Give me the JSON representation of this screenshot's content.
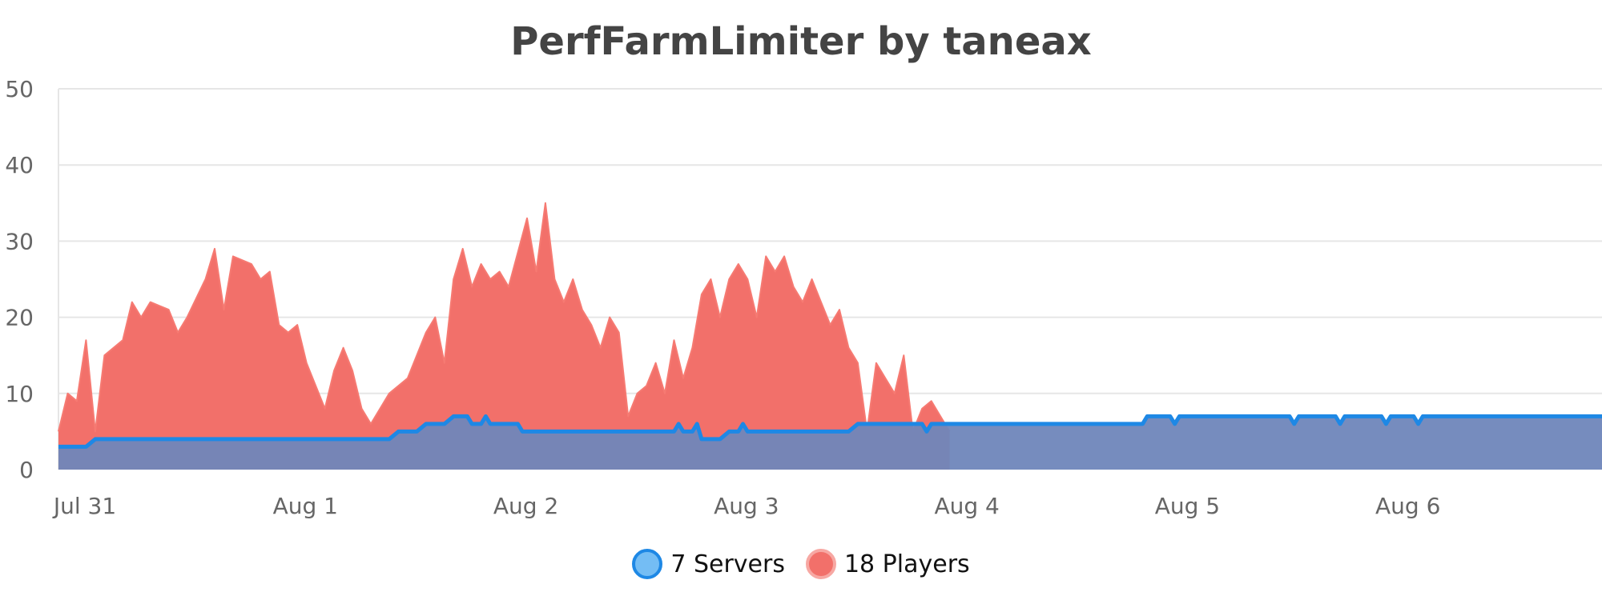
{
  "chart_data": {
    "type": "area",
    "title": "PerfFarmLimiter by taneax",
    "x_axis": {
      "type": "date",
      "range": [
        "2024-07-31",
        "2024-08-07"
      ],
      "tick_labels": [
        "Jul 31",
        "Aug 1",
        "Aug 2",
        "Aug 3",
        "Aug 4",
        "Aug 5",
        "Aug 6"
      ],
      "tick_values": [
        "2024-07-31",
        "2024-08-01",
        "2024-08-02",
        "2024-08-03",
        "2024-08-04",
        "2024-08-05",
        "2024-08-06"
      ]
    },
    "y_axis": {
      "range": [
        0,
        50
      ],
      "tick_labels": [
        "0",
        "10",
        "20",
        "30",
        "40",
        "50"
      ],
      "grid": true
    },
    "legend": {
      "position": "bottom"
    },
    "series": [
      {
        "name": "7 Servers",
        "color": "#1e88e5",
        "fill": "#6f86ba",
        "points": [
          [
            "2024-07-31T00:00",
            3
          ],
          [
            "2024-07-31T03:00",
            3
          ],
          [
            "2024-07-31T04:00",
            4
          ],
          [
            "2024-08-01T12:00",
            4
          ],
          [
            "2024-08-01T13:00",
            5
          ],
          [
            "2024-08-01T15:00",
            5
          ],
          [
            "2024-08-01T16:00",
            6
          ],
          [
            "2024-08-01T18:00",
            6
          ],
          [
            "2024-08-01T19:00",
            7
          ],
          [
            "2024-08-01T20:30",
            7
          ],
          [
            "2024-08-01T21:00",
            6
          ],
          [
            "2024-08-01T22:00",
            6
          ],
          [
            "2024-08-01T22:30",
            7
          ],
          [
            "2024-08-01T23:00",
            6
          ],
          [
            "2024-08-02T02:00",
            6
          ],
          [
            "2024-08-02T02:30",
            5
          ],
          [
            "2024-08-02T19:00",
            5
          ],
          [
            "2024-08-02T19:30",
            6
          ],
          [
            "2024-08-02T20:00",
            5
          ],
          [
            "2024-08-02T21:00",
            5
          ],
          [
            "2024-08-02T21:30",
            6
          ],
          [
            "2024-08-02T22:00",
            4
          ],
          [
            "2024-08-03T00:00",
            4
          ],
          [
            "2024-08-03T01:00",
            5
          ],
          [
            "2024-08-03T02:00",
            5
          ],
          [
            "2024-08-03T02:30",
            6
          ],
          [
            "2024-08-03T03:00",
            5
          ],
          [
            "2024-08-03T14:00",
            5
          ],
          [
            "2024-08-03T15:00",
            6
          ],
          [
            "2024-08-03T22:00",
            6
          ],
          [
            "2024-08-03T22:30",
            5
          ],
          [
            "2024-08-03T23:00",
            6
          ],
          [
            "2024-08-04T22:00",
            6
          ],
          [
            "2024-08-04T22:30",
            7
          ],
          [
            "2024-08-05T01:00",
            7
          ],
          [
            "2024-08-05T01:30",
            6
          ],
          [
            "2024-08-05T02:00",
            7
          ],
          [
            "2024-08-05T14:00",
            7
          ],
          [
            "2024-08-05T14:30",
            6
          ],
          [
            "2024-08-05T15:00",
            7
          ],
          [
            "2024-08-05T19:00",
            7
          ],
          [
            "2024-08-05T19:30",
            6
          ],
          [
            "2024-08-05T20:00",
            7
          ],
          [
            "2024-08-06T00:00",
            7
          ],
          [
            "2024-08-06T00:30",
            6
          ],
          [
            "2024-08-06T01:00",
            7
          ],
          [
            "2024-08-06T03:30",
            7
          ],
          [
            "2024-08-06T04:00",
            6
          ],
          [
            "2024-08-06T04:30",
            7
          ],
          [
            "2024-08-07T00:00",
            7
          ]
        ]
      },
      {
        "name": "18 Players",
        "color": "#f67a72",
        "fill": "#f2706a",
        "points": [
          [
            "2024-07-31T00:00",
            5
          ],
          [
            "2024-07-31T01:00",
            10
          ],
          [
            "2024-07-31T02:00",
            9
          ],
          [
            "2024-07-31T03:00",
            17
          ],
          [
            "2024-07-31T04:00",
            5
          ],
          [
            "2024-07-31T05:00",
            15
          ],
          [
            "2024-07-31T07:00",
            17
          ],
          [
            "2024-07-31T08:00",
            22
          ],
          [
            "2024-07-31T09:00",
            20
          ],
          [
            "2024-07-31T10:00",
            22
          ],
          [
            "2024-07-31T12:00",
            21
          ],
          [
            "2024-07-31T13:00",
            18
          ],
          [
            "2024-07-31T14:00",
            20
          ],
          [
            "2024-07-31T16:00",
            25
          ],
          [
            "2024-07-31T17:00",
            29
          ],
          [
            "2024-07-31T18:00",
            21
          ],
          [
            "2024-07-31T19:00",
            28
          ],
          [
            "2024-07-31T21:00",
            27
          ],
          [
            "2024-07-31T22:00",
            25
          ],
          [
            "2024-07-31T23:00",
            26
          ],
          [
            "2024-08-01T00:00",
            19
          ],
          [
            "2024-08-01T01:00",
            18
          ],
          [
            "2024-08-01T02:00",
            19
          ],
          [
            "2024-08-01T03:00",
            14
          ],
          [
            "2024-08-01T05:00",
            8
          ],
          [
            "2024-08-01T06:00",
            13
          ],
          [
            "2024-08-01T07:00",
            16
          ],
          [
            "2024-08-01T08:00",
            13
          ],
          [
            "2024-08-01T09:00",
            8
          ],
          [
            "2024-08-01T10:00",
            6
          ],
          [
            "2024-08-01T11:00",
            8
          ],
          [
            "2024-08-01T12:00",
            10
          ],
          [
            "2024-08-01T14:00",
            12
          ],
          [
            "2024-08-01T16:00",
            18
          ],
          [
            "2024-08-01T17:00",
            20
          ],
          [
            "2024-08-01T18:00",
            14
          ],
          [
            "2024-08-01T19:00",
            25
          ],
          [
            "2024-08-01T20:00",
            29
          ],
          [
            "2024-08-01T21:00",
            24
          ],
          [
            "2024-08-01T22:00",
            27
          ],
          [
            "2024-08-01T23:00",
            25
          ],
          [
            "2024-08-02T00:00",
            26
          ],
          [
            "2024-08-02T01:00",
            24
          ],
          [
            "2024-08-02T03:00",
            33
          ],
          [
            "2024-08-02T04:00",
            26
          ],
          [
            "2024-08-02T05:00",
            35
          ],
          [
            "2024-08-02T06:00",
            25
          ],
          [
            "2024-08-02T07:00",
            22
          ],
          [
            "2024-08-02T08:00",
            25
          ],
          [
            "2024-08-02T09:00",
            21
          ],
          [
            "2024-08-02T10:00",
            19
          ],
          [
            "2024-08-02T11:00",
            16
          ],
          [
            "2024-08-02T12:00",
            20
          ],
          [
            "2024-08-02T13:00",
            18
          ],
          [
            "2024-08-02T14:00",
            7
          ],
          [
            "2024-08-02T15:00",
            10
          ],
          [
            "2024-08-02T16:00",
            11
          ],
          [
            "2024-08-02T17:00",
            14
          ],
          [
            "2024-08-02T18:00",
            10
          ],
          [
            "2024-08-02T19:00",
            17
          ],
          [
            "2024-08-02T20:00",
            12
          ],
          [
            "2024-08-02T21:00",
            16
          ],
          [
            "2024-08-02T22:00",
            23
          ],
          [
            "2024-08-02T23:00",
            25
          ],
          [
            "2024-08-03T00:00",
            20
          ],
          [
            "2024-08-03T01:00",
            25
          ],
          [
            "2024-08-03T02:00",
            27
          ],
          [
            "2024-08-03T03:00",
            25
          ],
          [
            "2024-08-03T04:00",
            20
          ],
          [
            "2024-08-03T05:00",
            28
          ],
          [
            "2024-08-03T06:00",
            26
          ],
          [
            "2024-08-03T07:00",
            28
          ],
          [
            "2024-08-03T08:00",
            24
          ],
          [
            "2024-08-03T09:00",
            22
          ],
          [
            "2024-08-03T10:00",
            25
          ],
          [
            "2024-08-03T11:00",
            22
          ],
          [
            "2024-08-03T12:00",
            19
          ],
          [
            "2024-08-03T13:00",
            21
          ],
          [
            "2024-08-03T14:00",
            16
          ],
          [
            "2024-08-03T15:00",
            14
          ],
          [
            "2024-08-03T16:00",
            5
          ],
          [
            "2024-08-03T17:00",
            14
          ],
          [
            "2024-08-03T18:00",
            12
          ],
          [
            "2024-08-03T19:00",
            10
          ],
          [
            "2024-08-03T20:00",
            15
          ],
          [
            "2024-08-03T21:00",
            5
          ],
          [
            "2024-08-03T22:00",
            8
          ],
          [
            "2024-08-03T23:00",
            9
          ],
          [
            "2024-08-04T00:00",
            7
          ],
          [
            "2024-08-04T01:00",
            5
          ]
        ]
      }
    ]
  }
}
